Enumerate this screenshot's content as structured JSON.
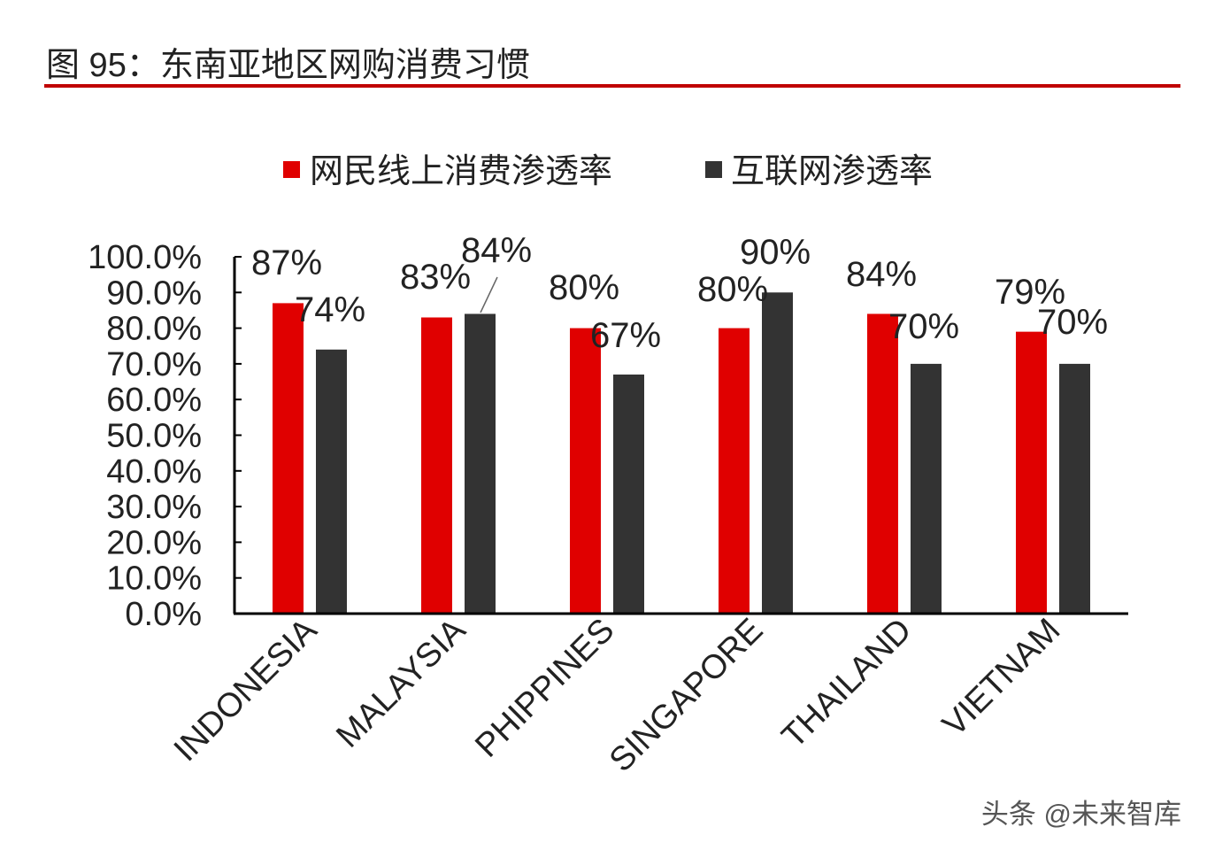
{
  "title": "图 95：东南亚地区网购消费习惯",
  "watermark": "头条 @未来智库",
  "colors": {
    "series_1": "#e00000",
    "series_2": "#333333",
    "title_rule": "#c00000",
    "text": "#222222"
  },
  "chart_data": {
    "type": "bar",
    "title": "",
    "xlabel": "",
    "ylabel": "",
    "ylim": [
      0,
      100
    ],
    "yticks": [
      "0.0%",
      "10.0%",
      "20.0%",
      "30.0%",
      "40.0%",
      "50.0%",
      "60.0%",
      "70.0%",
      "80.0%",
      "90.0%",
      "100.0%"
    ],
    "grid": false,
    "legend_position": "top",
    "categories": [
      "INDONESIA",
      "MALAYSIA",
      "PHIPPINES",
      "SINGAPORE",
      "THAILAND",
      "VIETNAM"
    ],
    "series": [
      {
        "name": "网民线上消费渗透率",
        "values": [
          87,
          83,
          80,
          80,
          84,
          79
        ],
        "labels": [
          "87%",
          "83%",
          "80%",
          "80%",
          "84%",
          "79%"
        ]
      },
      {
        "name": "互联网渗透率",
        "values": [
          74,
          84,
          67,
          90,
          70,
          70
        ],
        "labels": [
          "74%",
          "84%",
          "67%",
          "90%",
          "70%",
          "70%"
        ]
      }
    ]
  }
}
